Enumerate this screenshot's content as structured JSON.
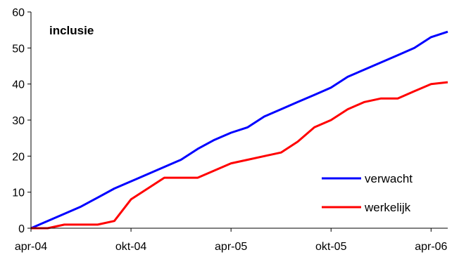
{
  "chart_data": {
    "type": "line",
    "title": "inclusie",
    "xlabel": "",
    "ylabel": "",
    "xlim": [
      "2004-04",
      "2006-05"
    ],
    "ylim": [
      0,
      60
    ],
    "y_ticks": [
      0,
      10,
      20,
      30,
      40,
      50,
      60
    ],
    "x_ticks": [
      "2004-04",
      "2004-10",
      "2005-04",
      "2005-10",
      "2006-04"
    ],
    "x_tick_labels": [
      "apr-04",
      "okt-04",
      "apr-05",
      "okt-05",
      "apr-06"
    ],
    "grid": false,
    "legend_position": "bottom-right",
    "x": [
      "2004-04",
      "2004-05",
      "2004-06",
      "2004-07",
      "2004-08",
      "2004-09",
      "2004-10",
      "2004-11",
      "2004-12",
      "2005-01",
      "2005-02",
      "2005-03",
      "2005-04",
      "2005-05",
      "2005-06",
      "2005-07",
      "2005-08",
      "2005-09",
      "2005-10",
      "2005-11",
      "2005-12",
      "2006-01",
      "2006-02",
      "2006-03",
      "2006-04",
      "2006-05"
    ],
    "series": [
      {
        "name": "verwacht",
        "color": "#0000ff",
        "values": [
          0,
          2,
          4,
          6,
          8.5,
          11,
          13,
          15,
          17,
          19,
          22,
          24.5,
          26.5,
          28,
          31,
          33,
          35,
          37,
          39,
          42,
          44,
          46,
          48,
          50,
          53,
          54.5
        ]
      },
      {
        "name": "werkelijk",
        "color": "#ff0000",
        "values": [
          0,
          0,
          1,
          1,
          1,
          2,
          8,
          11,
          14,
          14,
          14,
          16,
          18,
          19,
          20,
          21,
          24,
          28,
          30,
          33,
          35,
          36,
          36,
          38,
          40,
          40.5
        ]
      }
    ]
  }
}
